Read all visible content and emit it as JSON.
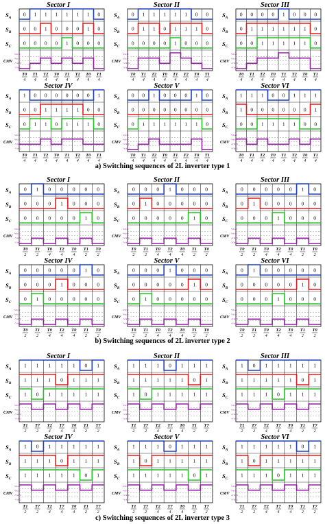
{
  "colors": {
    "SA": "#1f3fbf",
    "SB": "#e01b1b",
    "SC": "#22c322",
    "CMV": "#8e1f9e",
    "grid": "#000000",
    "dash": "#9a9a9a",
    "legend": "#8e1f9e"
  },
  "signal_labels": {
    "SA": "S",
    "SA_sub": "A",
    "SB": "S",
    "SB_sub": "B",
    "SC": "S",
    "SC_sub": "C",
    "CMV": "CMV"
  },
  "cmv_axis_labels": [
    "Vdc/2",
    "Vdc/6",
    "-Vdc/6",
    "-Vdc/2"
  ],
  "captions": [
    "a) Switching sequences of 2L inverter type 1",
    "b) Switching sequences of 2L inverter type 2",
    "c) Switching sequences of 2L inverter type 3"
  ],
  "groups": [
    {
      "caption": "a) Switching sequences of 2L inverter type 1",
      "time_labels": [
        [
          "T0",
          "4"
        ],
        [
          "T1",
          "4"
        ],
        [
          "T2",
          "4"
        ],
        [
          "T0",
          "4"
        ],
        [
          "T1",
          "4"
        ],
        [
          "T2",
          "4"
        ],
        [
          "T0",
          "4"
        ],
        [
          "T1",
          "4"
        ]
      ],
      "sectors": [
        {
          "title": "Sector I",
          "SA": [
            0,
            1,
            1,
            1,
            1,
            1,
            1,
            0
          ],
          "SB": [
            0,
            0,
            1,
            0,
            0,
            0,
            1,
            0
          ],
          "SC": [
            0,
            0,
            0,
            0,
            1,
            0,
            0,
            0
          ]
        },
        {
          "title": "Sector II",
          "SA": [
            0,
            1,
            1,
            1,
            1,
            1,
            0,
            0
          ],
          "SB": [
            0,
            1,
            1,
            0,
            1,
            1,
            1,
            0
          ],
          "SC": [
            0,
            0,
            0,
            0,
            1,
            0,
            0,
            0
          ]
        },
        {
          "title": "Sector III",
          "SA": [
            0,
            0,
            0,
            0,
            1,
            0,
            0,
            0
          ],
          "SB": [
            0,
            1,
            1,
            1,
            1,
            1,
            1,
            0
          ],
          "SC": [
            0,
            0,
            1,
            1,
            1,
            1,
            1,
            0
          ]
        },
        {
          "title": "Sector IV",
          "SA": [
            1,
            0,
            0,
            0,
            0,
            0,
            0,
            1
          ],
          "SB": [
            0,
            0,
            1,
            1,
            1,
            1,
            0,
            0
          ],
          "SC": [
            0,
            1,
            1,
            0,
            1,
            1,
            1,
            0
          ]
        },
        {
          "title": "Sector V",
          "SA": [
            0,
            0,
            1,
            0,
            0,
            0,
            1,
            0
          ],
          "SB": [
            0,
            0,
            0,
            0,
            0,
            0,
            0,
            0
          ],
          "SC": [
            0,
            1,
            1,
            1,
            1,
            1,
            1,
            0
          ]
        },
        {
          "title": "Sector VI",
          "SA": [
            1,
            1,
            1,
            0,
            0,
            1,
            1,
            1
          ],
          "SB": [
            1,
            0,
            0,
            0,
            0,
            0,
            0,
            1
          ],
          "SC": [
            0,
            0,
            1,
            1,
            1,
            1,
            0,
            0
          ]
        }
      ]
    },
    {
      "caption": "b) Switching sequences of 2L inverter type 2",
      "time_labels": [
        [
          "T0",
          "2"
        ],
        [
          "T1",
          "2"
        ],
        [
          "T0",
          "4"
        ],
        [
          "T2",
          "4"
        ],
        [
          "T0",
          "4"
        ],
        [
          "T1",
          "2"
        ],
        [
          "T0",
          "2"
        ]
      ],
      "sectors": [
        {
          "title": "Sector I",
          "SA": [
            0,
            1,
            0,
            0,
            0,
            0,
            0
          ],
          "SB": [
            0,
            0,
            0,
            1,
            0,
            0,
            0
          ],
          "SC": [
            0,
            0,
            0,
            0,
            0,
            1,
            0
          ]
        },
        {
          "title": "Sector II",
          "SA": [
            0,
            0,
            0,
            1,
            0,
            0,
            0
          ],
          "SB": [
            0,
            1,
            0,
            0,
            0,
            0,
            0
          ],
          "SC": [
            0,
            0,
            0,
            0,
            0,
            1,
            0
          ]
        },
        {
          "title": "Sector III",
          "SA": [
            0,
            0,
            0,
            0,
            0,
            1,
            0
          ],
          "SB": [
            0,
            1,
            0,
            0,
            0,
            0,
            0
          ],
          "SC": [
            0,
            0,
            0,
            1,
            0,
            0,
            0
          ]
        },
        {
          "title": "Sector IV",
          "SA": [
            0,
            0,
            0,
            0,
            0,
            1,
            0
          ],
          "SB": [
            0,
            0,
            0,
            1,
            0,
            0,
            0
          ],
          "SC": [
            0,
            1,
            0,
            0,
            0,
            0,
            0
          ]
        },
        {
          "title": "Sector V",
          "SA": [
            0,
            0,
            0,
            1,
            0,
            0,
            0
          ],
          "SB": [
            0,
            0,
            0,
            0,
            0,
            1,
            0
          ],
          "SC": [
            0,
            1,
            0,
            0,
            0,
            0,
            0
          ]
        },
        {
          "title": "Sector VI",
          "SA": [
            0,
            1,
            0,
            0,
            0,
            0,
            0
          ],
          "SB": [
            0,
            0,
            0,
            0,
            0,
            1,
            0
          ],
          "SC": [
            0,
            0,
            0,
            1,
            0,
            0,
            0
          ]
        }
      ]
    },
    {
      "caption": "c) Switching sequences of 2L inverter type 3",
      "time_labels": [
        [
          "T1",
          "2"
        ],
        [
          "T7",
          "2"
        ],
        [
          "T2",
          "4"
        ],
        [
          "T7",
          "4"
        ],
        [
          "T0",
          "4"
        ],
        [
          "T1",
          "2"
        ],
        [
          "T7",
          "2"
        ]
      ],
      "sectors": [
        {
          "title": "Sector I",
          "SA": [
            1,
            1,
            1,
            1,
            1,
            0,
            1
          ],
          "SB": [
            1,
            1,
            1,
            0,
            1,
            1,
            1
          ],
          "SC": [
            1,
            0,
            1,
            1,
            1,
            1,
            1
          ]
        },
        {
          "title": "Sector II",
          "SA": [
            1,
            1,
            1,
            0,
            1,
            1,
            1
          ],
          "SB": [
            1,
            1,
            1,
            1,
            1,
            0,
            1
          ],
          "SC": [
            1,
            0,
            1,
            1,
            1,
            1,
            1
          ]
        },
        {
          "title": "Sector III",
          "SA": [
            1,
            0,
            1,
            1,
            1,
            1,
            1
          ],
          "SB": [
            1,
            1,
            1,
            1,
            1,
            0,
            1
          ],
          "SC": [
            1,
            1,
            1,
            0,
            1,
            1,
            1
          ]
        },
        {
          "title": "Sector IV",
          "SA": [
            1,
            0,
            1,
            1,
            1,
            1,
            1
          ],
          "SB": [
            1,
            1,
            1,
            0,
            1,
            1,
            1
          ],
          "SC": [
            1,
            1,
            1,
            1,
            1,
            0,
            1
          ]
        },
        {
          "title": "Sector V",
          "SA": [
            1,
            1,
            1,
            0,
            1,
            1,
            1
          ],
          "SB": [
            1,
            0,
            1,
            1,
            1,
            1,
            1
          ],
          "SC": [
            1,
            1,
            1,
            1,
            1,
            0,
            1
          ]
        },
        {
          "title": "Sector VI",
          "SA": [
            1,
            1,
            1,
            1,
            1,
            0,
            1
          ],
          "SB": [
            1,
            0,
            1,
            1,
            1,
            1,
            1
          ],
          "SC": [
            1,
            1,
            1,
            0,
            1,
            1,
            1
          ]
        }
      ]
    }
  ]
}
